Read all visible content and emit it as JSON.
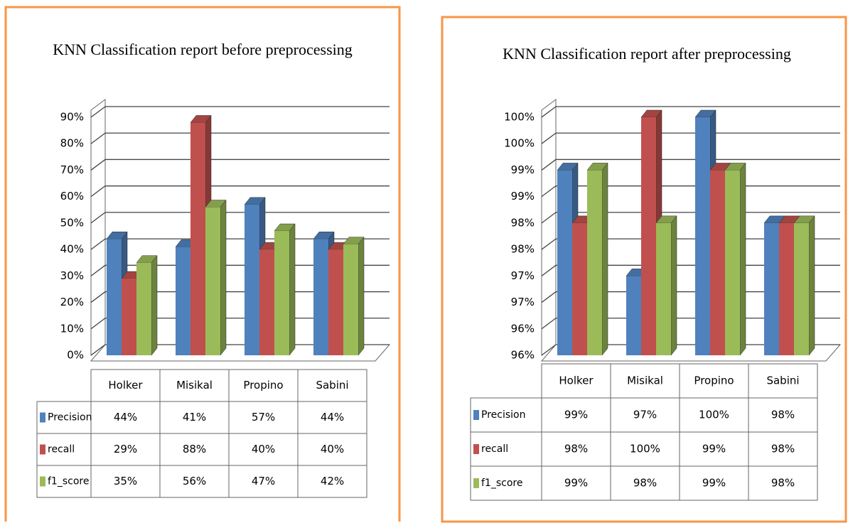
{
  "chart_data": [
    {
      "type": "bar",
      "title": "KNN Classification report before preprocessing",
      "categories": [
        "Holker",
        "Misikal",
        "Propino",
        "Sabini"
      ],
      "series": [
        {
          "name": "Precision",
          "color": "#4f81bd",
          "values": [
            44,
            41,
            57,
            44
          ],
          "value_labels": [
            "44%",
            "41%",
            "57%",
            "44%"
          ]
        },
        {
          "name": "recall",
          "color": "#c0504d",
          "values": [
            29,
            88,
            40,
            40
          ],
          "value_labels": [
            "29%",
            "88%",
            "40%",
            "40%"
          ]
        },
        {
          "name": "f1_score",
          "color": "#9bbb59",
          "values": [
            35,
            56,
            47,
            42
          ],
          "value_labels": [
            "35%",
            "56%",
            "47%",
            "42%"
          ]
        }
      ],
      "ylim": [
        0,
        90
      ],
      "yticks": [
        {
          "value": 0,
          "label": "0%"
        },
        {
          "value": 10,
          "label": "10%"
        },
        {
          "value": 20,
          "label": "20%"
        },
        {
          "value": 30,
          "label": "30%"
        },
        {
          "value": 40,
          "label": "40%"
        },
        {
          "value": 50,
          "label": "50%"
        },
        {
          "value": 60,
          "label": "60%"
        },
        {
          "value": 70,
          "label": "70%"
        },
        {
          "value": 80,
          "label": "80%"
        },
        {
          "value": 90,
          "label": "90%"
        }
      ],
      "grid": true
    },
    {
      "type": "bar",
      "title": "KNN Classification report after preprocessing",
      "categories": [
        "Holker",
        "Misikal",
        "Propino",
        "Sabini"
      ],
      "series": [
        {
          "name": "Precision",
          "color": "#4f81bd",
          "values": [
            99,
            97,
            100,
            98
          ],
          "value_labels": [
            "99%",
            "97%",
            "100%",
            "98%"
          ]
        },
        {
          "name": "recall",
          "color": "#c0504d",
          "values": [
            98,
            100,
            99,
            98
          ],
          "value_labels": [
            "98%",
            "100%",
            "99%",
            "98%"
          ]
        },
        {
          "name": "f1_score",
          "color": "#9bbb59",
          "values": [
            99,
            98,
            99,
            98
          ],
          "value_labels": [
            "99%",
            "98%",
            "99%",
            "98%"
          ]
        }
      ],
      "ylim": [
        95.5,
        100
      ],
      "yticks": [
        {
          "value": 95.5,
          "label": "96%"
        },
        {
          "value": 96,
          "label": "96%"
        },
        {
          "value": 96.5,
          "label": "97%"
        },
        {
          "value": 97,
          "label": "97%"
        },
        {
          "value": 97.5,
          "label": "98%"
        },
        {
          "value": 98,
          "label": "98%"
        },
        {
          "value": 98.5,
          "label": "99%"
        },
        {
          "value": 99,
          "label": "99%"
        },
        {
          "value": 99.5,
          "label": "100%"
        },
        {
          "value": 100,
          "label": "100%"
        }
      ],
      "grid": true
    }
  ]
}
